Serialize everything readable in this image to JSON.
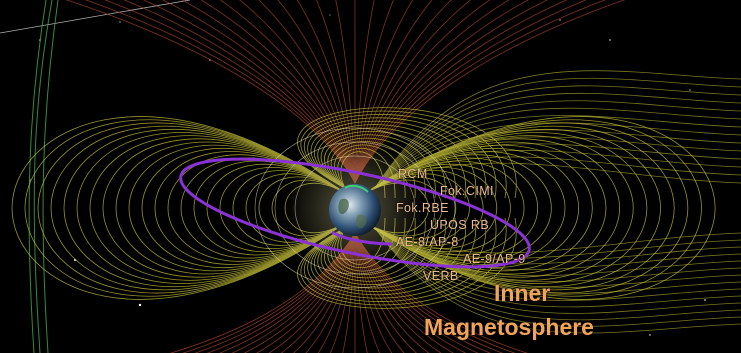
{
  "labels": {
    "rcm": "RCM",
    "fok_cimi": "Fok.CIMI",
    "fok_rbe": "Fok.RBE",
    "upos_rb": "UPOS RB",
    "ae8_ap8": "AE-8/AP-8",
    "ae9_ap9": "AE-9/AP-9",
    "verb": "VERB"
  },
  "title": {
    "line1": "Inner",
    "line2": "Magnetosphere"
  },
  "colors": {
    "background": "#000000",
    "field_lines": "#c9c43a",
    "open_lines": "#b8482c",
    "magnetopause": "#3ea545",
    "orbit": "#8a32d6",
    "model_labels": "#e9b98a",
    "title": "#f0a45a"
  }
}
